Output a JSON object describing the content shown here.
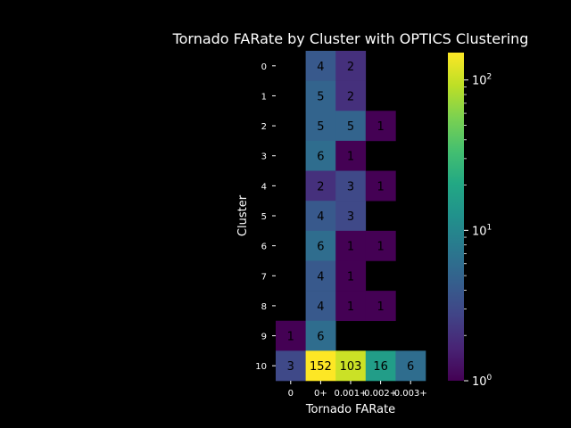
{
  "chart_data": {
    "type": "heatmap",
    "title": "Tornado FARate by Cluster with OPTICS Clustering",
    "xlabel": "Tornado FARate",
    "ylabel": "Cluster",
    "x_categories": [
      "0",
      "0+",
      "0.001+",
      "0.002+",
      "0.003+"
    ],
    "y_categories": [
      "0",
      "1",
      "2",
      "3",
      "4",
      "5",
      "6",
      "7",
      "8",
      "9",
      "10"
    ],
    "values": [
      [
        null,
        4,
        2,
        null,
        null
      ],
      [
        null,
        5,
        2,
        null,
        null
      ],
      [
        null,
        5,
        5,
        1,
        null
      ],
      [
        null,
        6,
        1,
        null,
        null
      ],
      [
        null,
        2,
        3,
        1,
        null
      ],
      [
        null,
        4,
        3,
        null,
        null
      ],
      [
        null,
        6,
        1,
        1,
        null
      ],
      [
        null,
        4,
        1,
        null,
        null
      ],
      [
        null,
        4,
        1,
        1,
        null
      ],
      [
        1,
        6,
        null,
        null,
        null
      ],
      [
        3,
        152,
        103,
        16,
        6
      ]
    ],
    "colorbar": {
      "scale": "log",
      "range": [
        1,
        152
      ],
      "colormap": "viridis",
      "ticks": [
        {
          "base": "10",
          "exp": "0"
        },
        {
          "base": "10",
          "exp": "1"
        },
        {
          "base": "10",
          "exp": "2"
        }
      ]
    },
    "colors": {
      "background": "#000000",
      "text": "#ffffff"
    }
  }
}
